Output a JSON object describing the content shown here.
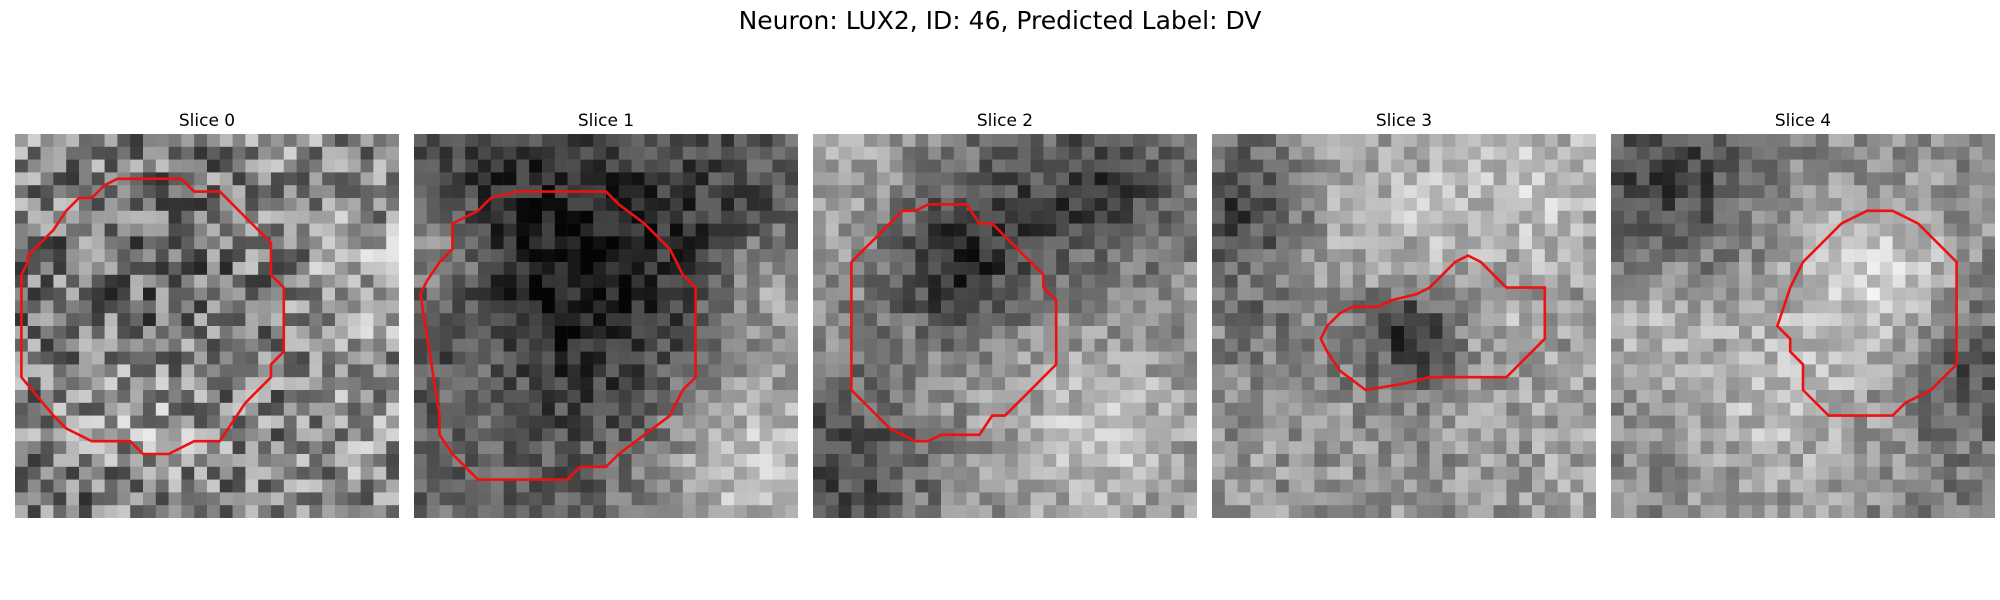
{
  "figure": {
    "title": "Neuron: LUX2, ID: 46, Predicted Label: DV"
  },
  "slices": [
    {
      "label": "Slice 0"
    },
    {
      "label": "Slice 1"
    },
    {
      "label": "Slice 2"
    },
    {
      "label": "Slice 3"
    },
    {
      "label": "Slice 4"
    }
  ],
  "colors": {
    "contour": "#ee1111",
    "background": "#ffffff"
  },
  "image_style": {
    "colormap": "grayscale",
    "grid_size": 30,
    "axes_visible": false
  }
}
